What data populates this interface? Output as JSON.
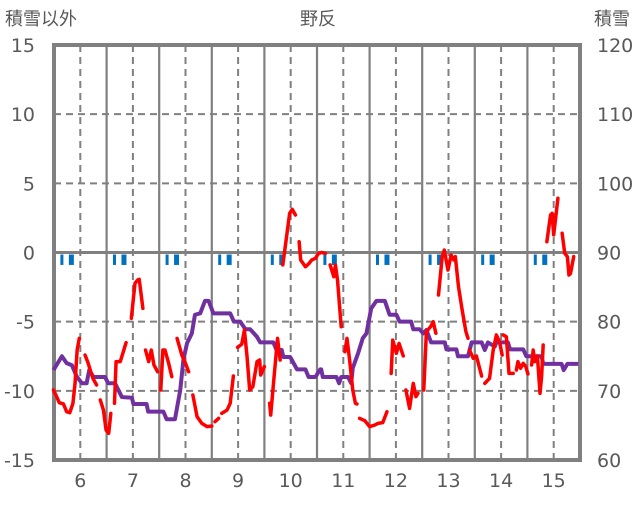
{
  "chart_data": {
    "type": "line",
    "title": "野反",
    "left_axis_label": "積雪以外",
    "right_axis_label": "積雪",
    "xlim": [
      5.5,
      15.5
    ],
    "ylim_left": [
      -15,
      15
    ],
    "ylim_right": [
      60,
      120
    ],
    "x_ticks": [
      "6",
      "7",
      "8",
      "9",
      "10",
      "11",
      "12",
      "13",
      "14",
      "15"
    ],
    "y_ticks_left": [
      "15",
      "10",
      "5",
      "0",
      "-5",
      "-10",
      "-15"
    ],
    "y_ticks_right": [
      "120",
      "110",
      "100",
      "90",
      "80",
      "70",
      "60"
    ],
    "grid": true,
    "colors": {
      "temperature": "#ff0000",
      "snow": "#7030a0",
      "markers": "#0070c0",
      "axis": "#808080"
    },
    "series": [
      {
        "name": "temperature",
        "axis": "left",
        "segments": [
          [
            [
              5.49,
              -9.94
            ],
            [
              5.55,
              -10.42
            ],
            [
              5.6,
              -10.86
            ],
            [
              5.68,
              -10.95
            ],
            [
              5.74,
              -11.51
            ],
            [
              5.8,
              -11.58
            ],
            [
              5.86,
              -10.9
            ],
            [
              5.9,
              -9.46
            ],
            [
              5.94,
              -7.05
            ],
            [
              5.98,
              -6.21
            ]
          ],
          [
            [
              6.09,
              -7.41
            ],
            [
              6.15,
              -8.01
            ],
            [
              6.19,
              -8.5
            ],
            [
              6.24,
              -9.1
            ],
            [
              6.31,
              -9.58
            ]
          ],
          [
            [
              6.38,
              -10.66
            ],
            [
              6.44,
              -11.39
            ],
            [
              6.49,
              -12.83
            ],
            [
              6.54,
              -13.07
            ],
            [
              6.58,
              -11.63
            ]
          ],
          [
            [
              6.65,
              -10.9
            ],
            [
              6.68,
              -7.89
            ],
            [
              6.76,
              -7.89
            ],
            [
              6.87,
              -6.52
            ]
          ],
          [
            [
              6.97,
              -4.76
            ],
            [
              7.04,
              -2.23
            ],
            [
              7.09,
              -1.99
            ],
            [
              7.12,
              -1.94
            ],
            [
              7.19,
              -4.04
            ]
          ],
          [
            [
              7.24,
              -7.05
            ],
            [
              7.3,
              -7.89
            ],
            [
              7.35,
              -7.05
            ],
            [
              7.4,
              -8.13
            ],
            [
              7.47,
              -8.62
            ]
          ],
          [
            [
              7.53,
              -9.94
            ],
            [
              7.57,
              -7.05
            ],
            [
              7.61,
              -7.05
            ],
            [
              7.68,
              -8.01
            ],
            [
              7.74,
              -8.98
            ]
          ],
          [
            [
              7.84,
              -6.21
            ],
            [
              7.93,
              -7.41
            ],
            [
              8.0,
              -8.01
            ],
            [
              8.06,
              -8.62
            ]
          ],
          [
            [
              8.14,
              -10.3
            ],
            [
              8.22,
              -11.87
            ],
            [
              8.31,
              -12.35
            ],
            [
              8.41,
              -12.59
            ],
            [
              8.5,
              -12.54
            ]
          ],
          [
            [
              8.56,
              -12.23
            ],
            [
              8.63,
              -11.99
            ]
          ],
          [
            [
              8.69,
              -11.63
            ],
            [
              8.79,
              -11.39
            ],
            [
              8.85,
              -10.9
            ],
            [
              8.91,
              -8.93
            ]
          ],
          [
            [
              8.99,
              -6.86
            ],
            [
              9.07,
              -6.62
            ],
            [
              9.12,
              -5.6
            ],
            [
              9.17,
              -7.53
            ],
            [
              9.22,
              -9.94
            ],
            [
              9.28,
              -9.7
            ],
            [
              9.36,
              -7.89
            ],
            [
              9.41,
              -7.77
            ],
            [
              9.43,
              -8.86
            ],
            [
              9.5,
              -8.25
            ]
          ],
          [
            [
              9.6,
              -10.9
            ],
            [
              9.62,
              -11.75
            ],
            [
              9.67,
              -9.58
            ],
            [
              9.75,
              -6.21
            ],
            [
              9.8,
              -7.77
            ]
          ],
          [
            [
              9.85,
              -0.9
            ],
            [
              9.93,
              1.39
            ],
            [
              9.98,
              2.83
            ],
            [
              10.03,
              3.12
            ],
            [
              10.09,
              2.71
            ]
          ],
          [
            [
              10.16,
              0.78
            ],
            [
              10.19,
              -0.54
            ],
            [
              10.28,
              -1.03
            ],
            [
              10.34,
              -0.83
            ],
            [
              10.4,
              -0.54
            ],
            [
              10.47,
              -0.42
            ],
            [
              10.53,
              -0.06
            ],
            [
              10.59,
              0
            ],
            [
              10.66,
              -0.06
            ]
          ],
          [
            [
              10.75,
              -0.9
            ],
            [
              10.82,
              -1.75
            ],
            [
              10.85,
              -0.9
            ],
            [
              10.89,
              -1.99
            ],
            [
              10.96,
              -5.37
            ]
          ],
          [
            [
              11.03,
              -7.17
            ],
            [
              11.07,
              -6.21
            ],
            [
              11.12,
              -7.77
            ],
            [
              11.18,
              -9.94
            ],
            [
              11.23,
              -10.9
            ],
            [
              11.26,
              -10.95
            ]
          ],
          [
            [
              11.31,
              -11.99
            ],
            [
              11.41,
              -12.16
            ],
            [
              11.5,
              -12.59
            ],
            [
              11.6,
              -12.47
            ],
            [
              11.66,
              -12.35
            ],
            [
              11.75,
              -12.3
            ],
            [
              11.83,
              -11.51
            ]
          ],
          [
            [
              11.91,
              -8.74
            ],
            [
              11.94,
              -6.33
            ],
            [
              12.01,
              -7.29
            ],
            [
              12.06,
              -6.57
            ],
            [
              12.14,
              -7.48
            ]
          ],
          [
            [
              12.19,
              -9.94
            ],
            [
              12.26,
              -11.27
            ],
            [
              12.33,
              -9.46
            ],
            [
              12.38,
              -10.42
            ],
            [
              12.42,
              -10.18
            ]
          ],
          [
            [
              12.53,
              -9.94
            ],
            [
              12.58,
              -5.72
            ],
            [
              12.66,
              -5.36
            ],
            [
              12.71,
              -5.0
            ],
            [
              12.76,
              -5.84
            ]
          ],
          [
            [
              12.81,
              -3.07
            ],
            [
              12.88,
              -0.3
            ],
            [
              12.92,
              0.18
            ],
            [
              12.99,
              -1.27
            ],
            [
              13.05,
              -0.18
            ],
            [
              13.1,
              -0.54
            ]
          ],
          [
            [
              13.13,
              -0.3
            ],
            [
              13.19,
              -2.47
            ],
            [
              13.26,
              -4.16
            ],
            [
              13.33,
              -5.7
            ],
            [
              13.37,
              -6.2
            ]
          ],
          [
            [
              13.4,
              -7.05
            ],
            [
              13.47,
              -7.65
            ],
            [
              13.53,
              -7.48
            ],
            [
              13.63,
              -8.93
            ]
          ],
          [
            [
              13.69,
              -9.46
            ],
            [
              13.78,
              -9.1
            ],
            [
              13.85,
              -7.05
            ],
            [
              13.91,
              -5.96
            ],
            [
              13.97,
              -6.45
            ],
            [
              14.02,
              -7.41
            ]
          ],
          [
            [
              14.04,
              -5.96
            ],
            [
              14.1,
              -6.09
            ],
            [
              14.15,
              -8.74
            ],
            [
              14.23,
              -8.74
            ]
          ],
          [
            [
              14.29,
              -8.5
            ],
            [
              14.32,
              -7.89
            ],
            [
              14.37,
              -8.37
            ],
            [
              14.42,
              -8.01
            ],
            [
              14.47,
              -8.25
            ],
            [
              14.51,
              -8.78
            ]
          ],
          [
            [
              14.58,
              -8.13
            ],
            [
              14.61,
              -7.05
            ],
            [
              14.64,
              -7.89
            ],
            [
              14.69,
              -7.48
            ],
            [
              14.74,
              -10.18
            ],
            [
              14.77,
              -8.97
            ],
            [
              14.8,
              -6.69
            ]
          ],
          [
            [
              14.87,
              0.78
            ],
            [
              14.94,
              2.71
            ],
            [
              14.97,
              2.83
            ],
            [
              15.0,
              1.27
            ],
            [
              15.08,
              3.92
            ]
          ],
          [
            [
              15.16,
              1.39
            ],
            [
              15.21,
              -0.06
            ],
            [
              15.26,
              -0.3
            ],
            [
              15.29,
              -1.63
            ],
            [
              15.32,
              -1.51
            ],
            [
              15.38,
              -0.3
            ]
          ]
        ]
      },
      {
        "name": "snow_depth",
        "axis": "right",
        "points": [
          [
            5.49,
            73.0
          ],
          [
            5.65,
            75.0
          ],
          [
            5.74,
            74.0
          ],
          [
            5.84,
            73.7
          ],
          [
            5.93,
            72.1
          ],
          [
            6.03,
            71.1
          ],
          [
            6.12,
            71.1
          ],
          [
            6.17,
            73.0
          ],
          [
            6.25,
            72.0
          ],
          [
            6.47,
            72.0
          ],
          [
            6.53,
            71.1
          ],
          [
            6.66,
            71.1
          ],
          [
            6.79,
            69.1
          ],
          [
            6.98,
            69.0
          ],
          [
            7.01,
            68.1
          ],
          [
            7.26,
            68.1
          ],
          [
            7.29,
            67.0
          ],
          [
            7.58,
            67.0
          ],
          [
            7.64,
            65.9
          ],
          [
            7.8,
            65.9
          ],
          [
            7.9,
            70.1
          ],
          [
            7.96,
            74.5
          ],
          [
            8.03,
            76.9
          ],
          [
            8.12,
            78.3
          ],
          [
            8.18,
            81.0
          ],
          [
            8.28,
            81.2
          ],
          [
            8.37,
            83.0
          ],
          [
            8.44,
            83.0
          ],
          [
            8.53,
            81.2
          ],
          [
            8.85,
            81.2
          ],
          [
            8.92,
            80.0
          ],
          [
            9.04,
            80.0
          ],
          [
            9.14,
            78.9
          ],
          [
            9.23,
            78.9
          ],
          [
            9.36,
            77.8
          ],
          [
            9.42,
            77.0
          ],
          [
            9.67,
            77.0
          ],
          [
            9.73,
            75.9
          ],
          [
            9.83,
            75.9
          ],
          [
            9.86,
            74.9
          ],
          [
            9.99,
            74.9
          ],
          [
            10.12,
            73.1
          ],
          [
            10.28,
            73.1
          ],
          [
            10.34,
            72.0
          ],
          [
            10.47,
            72.0
          ],
          [
            10.56,
            73.1
          ],
          [
            10.58,
            73.1
          ],
          [
            10.61,
            72.0
          ],
          [
            10.87,
            72.0
          ],
          [
            10.92,
            71.1
          ],
          [
            10.96,
            72.0
          ],
          [
            11.09,
            72.0
          ],
          [
            11.15,
            71.1
          ],
          [
            11.18,
            73.3
          ],
          [
            11.28,
            75.4
          ],
          [
            11.37,
            77.6
          ],
          [
            11.44,
            78.3
          ],
          [
            11.53,
            81.9
          ],
          [
            11.63,
            83.0
          ],
          [
            11.79,
            83.0
          ],
          [
            11.88,
            81.0
          ],
          [
            12.01,
            81.0
          ],
          [
            12.07,
            80.0
          ],
          [
            12.29,
            80.0
          ],
          [
            12.33,
            78.9
          ],
          [
            12.45,
            78.9
          ],
          [
            12.52,
            78.3
          ],
          [
            12.58,
            78.8
          ],
          [
            12.67,
            77.0
          ],
          [
            12.93,
            77.0
          ],
          [
            12.96,
            76.0
          ],
          [
            13.15,
            76.0
          ],
          [
            13.18,
            75.0
          ],
          [
            13.37,
            75.0
          ],
          [
            13.44,
            77.0
          ],
          [
            13.63,
            77.0
          ],
          [
            13.69,
            75.9
          ],
          [
            13.75,
            77.0
          ],
          [
            13.88,
            76.4
          ],
          [
            13.91,
            77.0
          ],
          [
            14.13,
            77.0
          ],
          [
            14.17,
            76.0
          ],
          [
            14.42,
            76.0
          ],
          [
            14.48,
            75.0
          ],
          [
            14.77,
            75.0
          ],
          [
            14.8,
            73.9
          ],
          [
            15.15,
            73.9
          ],
          [
            15.19,
            73.0
          ],
          [
            15.26,
            73.9
          ],
          [
            15.47,
            73.9
          ]
        ]
      },
      {
        "name": "markers",
        "axis": "left",
        "value": -0.9,
        "x": [
          5.65,
          5.83,
          6.65,
          6.83,
          7.65,
          7.83,
          8.65,
          8.83,
          9.65,
          9.83,
          10.65,
          10.83,
          11.65,
          11.83,
          12.65,
          12.83,
          13.65,
          13.83,
          14.65,
          14.83
        ]
      }
    ]
  }
}
